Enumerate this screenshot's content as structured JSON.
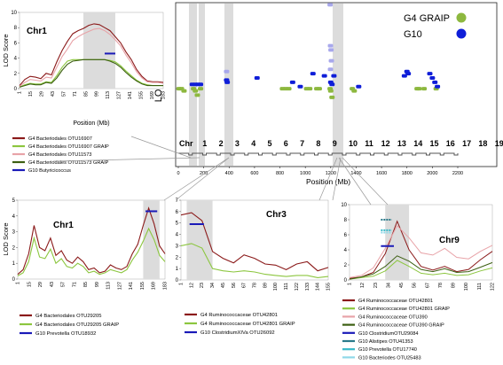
{
  "main": {
    "ylabel": "LOD Score",
    "xlabel": "Position (Mb)",
    "x_ticks": [
      "0",
      "200",
      "400",
      "600",
      "800",
      "1000",
      "1200",
      "1400",
      "1600",
      "1800",
      "2000",
      "2200"
    ],
    "chr_labels": [
      "Chr",
      "1",
      "2",
      "3",
      "4",
      "5",
      "6",
      "7",
      "8",
      "9",
      "10",
      "11",
      "12",
      "13",
      "14",
      "15",
      "16",
      "17",
      "18",
      "19"
    ],
    "legend": [
      {
        "label": "G4 GRAIP",
        "color": "#8db83f"
      },
      {
        "label": "G10",
        "color": "#0f1ed8"
      }
    ]
  },
  "panels": {
    "chr1_top": {
      "title": "Chr1",
      "ylabel": "LOD Score",
      "xlabel": "Position (Mb)",
      "y_ticks": [
        "0",
        "2",
        "4",
        "6",
        "8",
        "10"
      ],
      "x_ticks": [
        "1",
        "15",
        "29",
        "43",
        "57",
        "71",
        "85",
        "99",
        "113",
        "127",
        "141",
        "155",
        "169",
        "183"
      ],
      "legend": [
        {
          "label": "G4 Bacteriodales OTU16907",
          "color": "#8b1a1a"
        },
        {
          "label": "G4 Bacteriodales OTU16907 GRAIP",
          "color": "#8cc63f"
        },
        {
          "label": "G4 Bacteriodales OTU11573",
          "color": "#e8a3a8"
        },
        {
          "label": "G4 Bacteriodales OTU11573 GRAIP",
          "color": "#3c5f12"
        },
        {
          "label": "G10 Butyricicoccus",
          "color": "#1a1ab8"
        }
      ]
    },
    "chr1_bottom": {
      "title": "Chr1",
      "ylabel": "LOD Score",
      "y_ticks": [
        "0",
        "1",
        "2",
        "3",
        "4",
        "5"
      ],
      "x_ticks": [
        "1",
        "15",
        "29",
        "43",
        "57",
        "71",
        "85",
        "99",
        "113",
        "127",
        "141",
        "155",
        "169",
        "183"
      ],
      "legend": [
        {
          "label": "G4 Bacteriodales OTU29205",
          "color": "#8b1a1a"
        },
        {
          "label": "G4 Bacteriodales OTU29205 GRAIP",
          "color": "#8cc63f"
        },
        {
          "label": "G10 Prevotella OTU18932",
          "color": "#1a1ab8"
        }
      ]
    },
    "chr3": {
      "title": "Chr3",
      "y_ticks": [
        "0",
        "1",
        "2",
        "3",
        "4",
        "5",
        "6",
        "7"
      ],
      "x_ticks": [
        "1",
        "12",
        "23",
        "34",
        "45",
        "56",
        "67",
        "78",
        "89",
        "100",
        "111",
        "122",
        "133",
        "144",
        "155"
      ],
      "legend": [
        {
          "label": "G4 Ruminococcaceae OTU42801",
          "color": "#8b1a1a"
        },
        {
          "label": "G4 Ruminococcaceae OTU42801 GRAIP",
          "color": "#8cc63f"
        },
        {
          "label": "G10 ClostridiumXIVa OTU26092",
          "color": "#1a1ab8"
        }
      ]
    },
    "chr9": {
      "title": "Chr9",
      "y_ticks": [
        "0",
        "2",
        "4",
        "6",
        "8",
        "10"
      ],
      "x_ticks": [
        "1",
        "12",
        "23",
        "34",
        "45",
        "56",
        "67",
        "78",
        "89",
        "100",
        "111",
        "122"
      ],
      "legend": [
        {
          "label": "G4 Ruminococcaceae OTU42801",
          "color": "#8b1a1a"
        },
        {
          "label": "G4 Ruminococcaceae OTU42801 GRAIP",
          "color": "#8cc63f"
        },
        {
          "label": "G4 Ruminococcaceae OTU390",
          "color": "#e8a3a8"
        },
        {
          "label": "G4 Ruminococcaceae OTU390 GRAIP",
          "color": "#3c5f12"
        },
        {
          "label": "G10 ClostridiumOTU29084",
          "color": "#1a1ab8"
        },
        {
          "label": "G10 Alistipes OTU41353",
          "color": "#2a7a8a"
        },
        {
          "label": "G10 Prevotella OTU17740",
          "color": "#36b8c8"
        },
        {
          "label": "G10 Bacteriodes OTU25483",
          "color": "#8fd8e8"
        }
      ]
    }
  },
  "chart_data": [
    {
      "type": "scatter",
      "ylabel": "LOD Score",
      "xlabel": "Position (Mb)",
      "xlim": [
        0,
        2300
      ],
      "series": [
        {
          "name": "G4 GRAIP",
          "points": [
            [
              5,
              4.0
            ],
            [
              25,
              4.0
            ],
            [
              45,
              3.9
            ],
            [
              120,
              4.0
            ],
            [
              135,
              3.9
            ],
            [
              150,
              3.7
            ],
            [
              175,
              4.0
            ],
            [
              820,
              4.0
            ],
            [
              845,
              4.0
            ],
            [
              870,
              4.0
            ],
            [
              1010,
              4.0
            ],
            [
              1035,
              4.0
            ],
            [
              1090,
              4.0
            ],
            [
              1110,
              4.0
            ],
            [
              1195,
              4.0
            ],
            [
              1200,
              3.9
            ],
            [
              1210,
              3.6
            ],
            [
              1370,
              4.0
            ],
            [
              1385,
              3.9
            ],
            [
              1880,
              4.0
            ],
            [
              1895,
              4.0
            ],
            [
              1935,
              4.0
            ],
            [
              2030,
              4.0
            ]
          ]
        },
        {
          "name": "G10",
          "points": [
            [
              110,
              4.2
            ],
            [
              135,
              4.2
            ],
            [
              155,
              4.2
            ],
            [
              175,
              4.2
            ],
            [
              380,
              4.4
            ],
            [
              385,
              4.3
            ],
            [
              620,
              4.5
            ],
            [
              900,
              4.3
            ],
            [
              960,
              4.1
            ],
            [
              1060,
              4.7
            ],
            [
              1150,
              4.6
            ],
            [
              1200,
              4.3
            ],
            [
              1210,
              4.2
            ],
            [
              1225,
              4.6
            ],
            [
              1420,
              4.1
            ],
            [
              1780,
              4.6
            ],
            [
              1800,
              4.8
            ],
            [
              1810,
              4.7
            ],
            [
              1980,
              4.7
            ],
            [
              2000,
              4.5
            ],
            [
              2020,
              4.3
            ],
            [
              2040,
              4.1
            ]
          ]
        },
        {
          "name": "",
          "points": [
            [
              380,
              4.8
            ],
            [
              1195,
              7.9
            ],
            [
              1198,
              6.0
            ],
            [
              1202,
              5.8
            ],
            [
              1205,
              5.3
            ],
            [
              1198,
              4.9
            ]
          ]
        }
      ]
    },
    {
      "type": "line",
      "title": "Chr1",
      "ylabel": "LOD Score",
      "xlabel": "Position (Mb)",
      "x": [
        1,
        8,
        15,
        22,
        29,
        36,
        43,
        50,
        57,
        64,
        71,
        78,
        85,
        92,
        99,
        106,
        113,
        120,
        127,
        134,
        141,
        148,
        155,
        162,
        169,
        176,
        183,
        190
      ],
      "ylim": [
        0,
        10
      ],
      "series": [
        {
          "name": "G4 Bacteriodales OTU16907",
          "values": [
            0.4,
            1.2,
            1.6,
            1.5,
            1.3,
            2.0,
            1.8,
            3.5,
            5.0,
            6.2,
            7.2,
            7.6,
            7.9,
            8.3,
            8.5,
            8.4,
            8.0,
            7.6,
            6.8,
            6.0,
            4.8,
            3.8,
            2.5,
            1.6,
            1.0,
            0.9,
            0.9,
            0.8
          ]
        },
        {
          "name": "G4 Bacteriodales OTU16907 GRAIP",
          "values": [
            0.2,
            0.5,
            0.7,
            0.6,
            0.6,
            0.9,
            0.8,
            1.7,
            2.8,
            3.6,
            3.8,
            3.8,
            3.8,
            3.8,
            3.8,
            3.8,
            3.8,
            3.7,
            3.5,
            3.0,
            2.3,
            1.7,
            1.1,
            0.7,
            0.5,
            0.4,
            0.4,
            0.4
          ]
        },
        {
          "name": "G4 Bacteriodales OTU11573",
          "values": [
            0.3,
            0.8,
            1.2,
            1.1,
            1.0,
            1.5,
            1.4,
            2.8,
            4.2,
            5.2,
            6.3,
            6.8,
            7.2,
            7.5,
            7.8,
            7.9,
            7.6,
            7.1,
            6.4,
            5.6,
            4.4,
            3.4,
            2.2,
            1.4,
            0.9,
            0.8,
            0.8,
            0.7
          ]
        },
        {
          "name": "G4 Bacteriodales OTU11573 GRAIP",
          "values": [
            0.2,
            0.4,
            0.6,
            0.5,
            0.5,
            0.8,
            0.7,
            1.4,
            2.4,
            3.2,
            3.6,
            3.7,
            3.8,
            3.8,
            3.8,
            3.8,
            3.8,
            3.6,
            3.3,
            2.8,
            2.1,
            1.5,
            1.0,
            0.6,
            0.4,
            0.4,
            0.4,
            0.4
          ]
        },
        {
          "name": "G10 Butyricicoccus",
          "segment": {
            "x": [
              113,
              127
            ],
            "y": 4.6
          }
        }
      ]
    },
    {
      "type": "line",
      "title": "Chr1",
      "ylabel": "LOD Score",
      "x": [
        1,
        8,
        15,
        22,
        29,
        36,
        43,
        50,
        57,
        64,
        71,
        78,
        85,
        92,
        99,
        106,
        113,
        120,
        127,
        134,
        141,
        148,
        155,
        162,
        169,
        176,
        183,
        190
      ],
      "ylim": [
        0,
        5
      ],
      "series": [
        {
          "name": "G4 Bacteriodales OTU29205",
          "values": [
            0.3,
            0.6,
            1.6,
            3.4,
            2.0,
            1.8,
            2.6,
            1.5,
            1.8,
            1.2,
            1.0,
            1.4,
            1.1,
            0.6,
            0.7,
            0.4,
            0.5,
            0.9,
            0.7,
            0.6,
            0.8,
            1.6,
            2.2,
            3.4,
            4.5,
            3.5,
            2.1,
            1.6
          ]
        },
        {
          "name": "G4 Bacteriodales OTU29205 GRAIP",
          "values": [
            0.2,
            0.4,
            1.1,
            2.6,
            1.4,
            1.3,
            1.9,
            1.0,
            1.3,
            0.8,
            0.7,
            1.0,
            0.8,
            0.4,
            0.5,
            0.3,
            0.4,
            0.6,
            0.5,
            0.4,
            0.6,
            1.2,
            1.7,
            2.4,
            3.2,
            2.5,
            1.5,
            1.1
          ]
        },
        {
          "name": "G10 Prevotella OTU18932",
          "segment": {
            "x": [
              165,
              180
            ],
            "y": 4.3
          }
        }
      ]
    },
    {
      "type": "line",
      "title": "Chr3",
      "x": [
        1,
        12,
        23,
        34,
        45,
        56,
        67,
        78,
        89,
        100,
        111,
        122,
        133,
        144,
        155
      ],
      "ylim": [
        0,
        7
      ],
      "series": [
        {
          "name": "G4 Ruminococcaceae OTU42801",
          "values": [
            5.7,
            5.9,
            5.2,
            2.5,
            1.9,
            1.5,
            2.2,
            1.9,
            1.4,
            1.3,
            0.9,
            1.4,
            1.6,
            0.8,
            1.1
          ]
        },
        {
          "name": "G4 Ruminococcaceae OTU42801 GRAIP",
          "values": [
            3.0,
            3.2,
            2.8,
            1.0,
            0.8,
            0.7,
            0.8,
            0.7,
            0.5,
            0.4,
            0.3,
            0.4,
            0.4,
            0.2,
            0.3
          ]
        },
        {
          "name": "G10 ClostridiumXIVa OTU26092",
          "segment": {
            "x": [
              10,
              25
            ],
            "y": 4.9
          }
        }
      ]
    },
    {
      "type": "line",
      "title": "Chr9",
      "x": [
        1,
        12,
        23,
        34,
        45,
        56,
        67,
        78,
        89,
        100,
        111,
        122,
        133
      ],
      "ylim": [
        0,
        10
      ],
      "series": [
        {
          "name": "G4 Ruminococcaceae OTU42801",
          "values": [
            0.2,
            0.4,
            1.0,
            3.5,
            7.8,
            4.0,
            1.8,
            1.3,
            1.8,
            1.1,
            1.4,
            2.7,
            3.8
          ]
        },
        {
          "name": "G4 Ruminococcaceae OTU42801 GRAIP",
          "values": [
            0.1,
            0.3,
            0.5,
            1.2,
            2.6,
            1.8,
            0.9,
            0.7,
            0.9,
            0.6,
            0.7,
            1.2,
            1.6
          ]
        },
        {
          "name": "G4 Ruminococcaceae OTU390",
          "values": [
            0.3,
            0.6,
            1.6,
            4.2,
            7.2,
            5.6,
            3.6,
            3.3,
            4.2,
            3.0,
            2.8,
            3.8,
            4.6
          ]
        },
        {
          "name": "G4 Ruminococcaceae OTU390 GRAIP",
          "values": [
            0.1,
            0.4,
            0.8,
            1.8,
            3.2,
            2.5,
            1.4,
            1.1,
            1.5,
            1.0,
            1.1,
            1.7,
            2.3
          ]
        },
        {
          "name": "G10 ClostridiumOTU29084",
          "segment": {
            "x": [
              30,
              42
            ],
            "y": 4.5
          }
        },
        {
          "name": "G10 Alistipes OTU41353",
          "segment": {
            "x": [
              30,
              40
            ],
            "y": 8.0
          }
        },
        {
          "name": "G10 Prevotella OTU17740",
          "segment": {
            "x": [
              30,
              40
            ],
            "y": 6.6
          }
        },
        {
          "name": "G10 Bacteriodes OTU25483",
          "segment": {
            "x": [
              30,
              40
            ],
            "y": 6.3
          }
        }
      ]
    }
  ]
}
